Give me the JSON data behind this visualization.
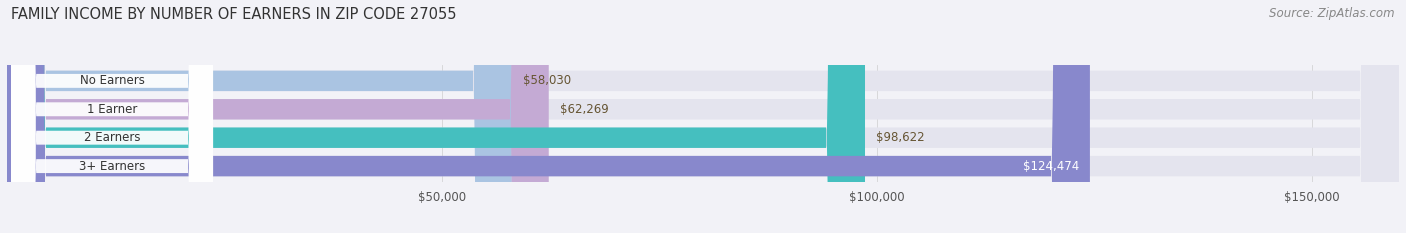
{
  "title": "FAMILY INCOME BY NUMBER OF EARNERS IN ZIP CODE 27055",
  "source_text": "Source: ZipAtlas.com",
  "categories": [
    "No Earners",
    "1 Earner",
    "2 Earners",
    "3+ Earners"
  ],
  "values": [
    58030,
    62269,
    98622,
    124474
  ],
  "bar_colors": [
    "#aac4e2",
    "#c4aad4",
    "#45bfbf",
    "#8888cc"
  ],
  "value_label_colors": [
    "#666633",
    "#666633",
    "#666633",
    "#ffffff"
  ],
  "value_labels": [
    "$58,030",
    "$62,269",
    "$98,622",
    "$124,474"
  ],
  "xlim": [
    0,
    160000
  ],
  "xticks": [
    50000,
    100000,
    150000
  ],
  "xtick_labels": [
    "$50,000",
    "$100,000",
    "$150,000"
  ],
  "background_color": "#f2f2f7",
  "bar_bg_color": "#e4e4ee",
  "title_fontsize": 10.5,
  "source_fontsize": 8.5,
  "bar_label_fontsize": 8.5,
  "value_label_fontsize": 8.5,
  "xtick_fontsize": 8.5,
  "figsize": [
    14.06,
    2.33
  ],
  "dpi": 100
}
